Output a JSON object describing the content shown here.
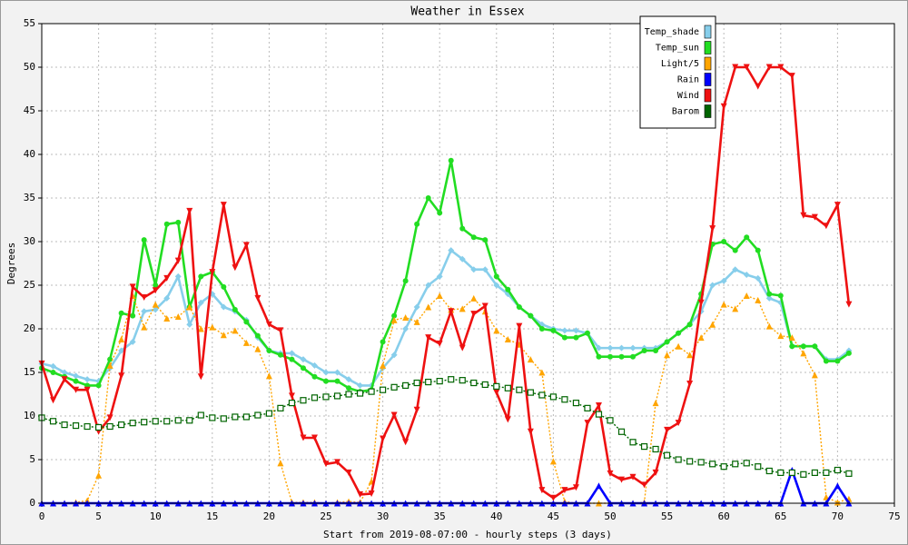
{
  "chart_data": {
    "type": "line",
    "title": "Weather in Essex",
    "xlabel": "Start from 2019-08-07:00 - hourly steps (3 days)",
    "ylabel": "Degrees",
    "x": [
      0,
      1,
      2,
      3,
      4,
      5,
      6,
      7,
      8,
      9,
      10,
      11,
      12,
      13,
      14,
      15,
      16,
      17,
      18,
      19,
      20,
      21,
      22,
      23,
      24,
      25,
      26,
      27,
      28,
      29,
      30,
      31,
      32,
      33,
      34,
      35,
      36,
      37,
      38,
      39,
      40,
      41,
      42,
      43,
      44,
      45,
      46,
      47,
      48,
      49,
      50,
      51,
      52,
      53,
      54,
      55,
      56,
      57,
      58,
      59,
      60,
      61,
      62,
      63,
      64,
      65,
      66,
      67,
      68,
      69,
      70,
      71
    ],
    "xlim": [
      0,
      75
    ],
    "xticks": [
      0,
      5,
      10,
      15,
      20,
      25,
      30,
      35,
      40,
      45,
      50,
      55,
      60,
      65,
      70,
      75
    ],
    "ylim": [
      0,
      55
    ],
    "yticks": [
      0,
      5,
      10,
      15,
      20,
      25,
      30,
      35,
      40,
      45,
      50,
      55
    ],
    "grid": true,
    "legend": "upper right",
    "series": [
      {
        "name": "Temp_shade",
        "color": "#87ceeb",
        "marker": "diamond",
        "dashed": false,
        "values": [
          16,
          15.7,
          15,
          14.6,
          14.2,
          14,
          15.5,
          17.5,
          18.5,
          22,
          22.2,
          23.5,
          26,
          20.5,
          23,
          24,
          22.5,
          22,
          21,
          19,
          17.5,
          17.2,
          17.2,
          16.5,
          15.8,
          15,
          15,
          14.2,
          13.5,
          13.5,
          15.5,
          17,
          20,
          22.5,
          25,
          26,
          29,
          28,
          26.8,
          26.8,
          25,
          24,
          22.5,
          21.5,
          20.5,
          20,
          19.8,
          19.8,
          19.5,
          17.8,
          17.8,
          17.8,
          17.8,
          17.8,
          17.8,
          18.5,
          19.5,
          20.5,
          22,
          25,
          25.5,
          26.8,
          26.2,
          25.8,
          23.5,
          23,
          18,
          18,
          18,
          16.5,
          16.5,
          17.5
        ]
      },
      {
        "name": "Temp_sun",
        "color": "#22dd22",
        "marker": "circle",
        "dashed": false,
        "values": [
          15.5,
          15,
          14.5,
          14,
          13.5,
          13.5,
          16.5,
          21.8,
          21.5,
          30.2,
          25,
          32,
          32.2,
          22.5,
          26,
          26.5,
          24.8,
          22.2,
          20.8,
          19.2,
          17.5,
          17,
          16.5,
          15.5,
          14.5,
          14,
          14,
          13.2,
          12.8,
          13,
          18.5,
          21.5,
          25.5,
          32,
          35,
          33.3,
          39.3,
          31.5,
          30.5,
          30.2,
          26,
          24.5,
          22.5,
          21.5,
          20,
          19.8,
          19,
          19,
          19.5,
          16.8,
          16.8,
          16.8,
          16.8,
          17.5,
          17.5,
          18.5,
          19.5,
          20.5,
          24,
          29.7,
          30,
          29,
          30.5,
          29,
          24,
          23.8,
          18,
          18,
          18,
          16.3,
          16.3,
          17.2
        ]
      },
      {
        "name": "Light/5",
        "color": "#ffa500",
        "marker": "triangle-up",
        "dashed": true,
        "values": [
          0,
          0,
          0,
          0.1,
          0.3,
          3.2,
          15.8,
          18.8,
          23.8,
          20.2,
          22.8,
          21.2,
          21.4,
          22.5,
          20,
          20.2,
          19.3,
          19.8,
          18.4,
          17.7,
          14.6,
          4.6,
          0.1,
          0.1,
          0.1,
          0,
          0.1,
          0.2,
          0.1,
          2.5,
          15.8,
          21,
          21.3,
          20.8,
          22.5,
          23.8,
          22.2,
          22.3,
          23.5,
          22,
          19.8,
          18.8,
          18.2,
          16.5,
          15,
          4.8,
          0.2,
          0,
          0,
          0,
          0,
          0,
          0,
          0.1,
          11.5,
          17,
          18,
          17,
          19,
          20.5,
          22.8,
          22.3,
          23.8,
          23.3,
          20.3,
          19.2,
          19,
          17.2,
          14.7,
          0.7,
          0.1,
          0.5
        ]
      },
      {
        "name": "Rain",
        "color": "#0000ff",
        "marker": "triangle-up",
        "dashed": false,
        "values": [
          0,
          0,
          0,
          0,
          0,
          0,
          0,
          0,
          0,
          0,
          0,
          0,
          0,
          0,
          0,
          0,
          0,
          0,
          0,
          0,
          0,
          0,
          0,
          0,
          0,
          0,
          0,
          0,
          0,
          0,
          0,
          0,
          0,
          0,
          0,
          0,
          0,
          0,
          0,
          0,
          0,
          0,
          0,
          0,
          0,
          0,
          0,
          0,
          0,
          2,
          0,
          0,
          0,
          0,
          0,
          0,
          0,
          0,
          0,
          0,
          0,
          0,
          0,
          0,
          0,
          0,
          3.8,
          0,
          0,
          0,
          2,
          0
        ]
      },
      {
        "name": "Wind",
        "color": "#ee1111",
        "marker": "triangle-down",
        "dashed": false,
        "values": [
          16,
          11.8,
          14.2,
          13,
          13,
          8.2,
          9.8,
          14.6,
          24.8,
          23.6,
          24.4,
          25.8,
          27.8,
          33.5,
          14.5,
          26.5,
          34.2,
          27,
          29.6,
          23.5,
          20.5,
          19.8,
          12.3,
          7.5,
          7.5,
          4.5,
          4.7,
          3.5,
          1,
          1.1,
          7.4,
          10.1,
          7,
          10.7,
          19,
          18.3,
          22,
          17.8,
          21.7,
          22.6,
          12.7,
          9.6,
          20.3,
          8.2,
          1.5,
          0.6,
          1.5,
          1.8,
          9.2,
          11.2,
          3.4,
          2.7,
          3,
          2.1,
          3.5,
          8.4,
          9.2,
          13.7,
          23,
          31.5,
          45.5,
          50,
          50,
          47.8,
          50,
          50,
          49,
          33,
          32.8,
          31.8,
          34.2,
          22.8
        ]
      },
      {
        "name": "Barom",
        "color": "#006400",
        "marker": "square-open",
        "dashed": true,
        "values": [
          9.8,
          9.4,
          9,
          8.9,
          8.8,
          8.7,
          8.8,
          9,
          9.2,
          9.3,
          9.4,
          9.4,
          9.5,
          9.5,
          10.1,
          9.8,
          9.7,
          9.9,
          9.9,
          10.1,
          10.3,
          10.9,
          11.5,
          11.8,
          12.1,
          12.2,
          12.3,
          12.5,
          12.6,
          12.8,
          13,
          13.3,
          13.5,
          13.8,
          13.9,
          14,
          14.2,
          14.1,
          13.8,
          13.6,
          13.4,
          13.2,
          13,
          12.7,
          12.4,
          12.2,
          11.9,
          11.5,
          10.9,
          10.2,
          9.5,
          8.2,
          7,
          6.5,
          6.2,
          5.5,
          5,
          4.8,
          4.7,
          4.5,
          4.2,
          4.5,
          4.6,
          4.2,
          3.7,
          3.5,
          3.5,
          3.3,
          3.5,
          3.5,
          3.8,
          3.4
        ]
      }
    ]
  }
}
